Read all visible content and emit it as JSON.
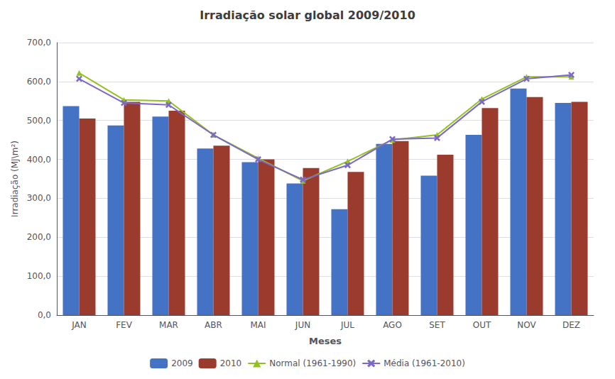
{
  "chart_data": {
    "type": "bar",
    "title": "Irradiação solar global 2009/2010",
    "xlabel": "Meses",
    "ylabel": "Irradiação (MJ\\m²)",
    "categories": [
      "JAN",
      "FEV",
      "MAR",
      "ABR",
      "MAI",
      "JUN",
      "JUL",
      "AGO",
      "SET",
      "OUT",
      "NOV",
      "DEZ"
    ],
    "series": [
      {
        "name": "2009",
        "type": "bar",
        "color": "#4472c4",
        "values": [
          537,
          487,
          510,
          428,
          393,
          338,
          272,
          440,
          358,
          463,
          582,
          545
        ]
      },
      {
        "name": "2010",
        "type": "bar",
        "color": "#9b3b2e",
        "values": [
          505,
          548,
          525,
          435,
          400,
          378,
          368,
          447,
          412,
          532,
          560,
          548
        ]
      },
      {
        "name": "Normal (1961-1990)",
        "type": "line",
        "color": "#93c11e",
        "marker": "triangle",
        "values": [
          622,
          553,
          550,
          463,
          403,
          345,
          395,
          450,
          463,
          555,
          612,
          612
        ]
      },
      {
        "name": "Média (1961-2010)",
        "type": "line",
        "color": "#7b68c8",
        "marker": "x",
        "values": [
          607,
          545,
          540,
          463,
          400,
          348,
          385,
          452,
          455,
          548,
          607,
          617
        ]
      }
    ],
    "ylim": [
      0,
      700
    ],
    "yticks": [
      {
        "value": 0,
        "label": "0,0"
      },
      {
        "value": 100,
        "label": "100,0"
      },
      {
        "value": 200,
        "label": "200,0"
      },
      {
        "value": 300,
        "label": "300,0"
      },
      {
        "value": 400,
        "label": "400,0"
      },
      {
        "value": 500,
        "label": "500,0"
      },
      {
        "value": 600,
        "label": "600,0"
      },
      {
        "value": 700,
        "label": "700,0"
      }
    ],
    "grid": true,
    "legend": "bottom"
  }
}
